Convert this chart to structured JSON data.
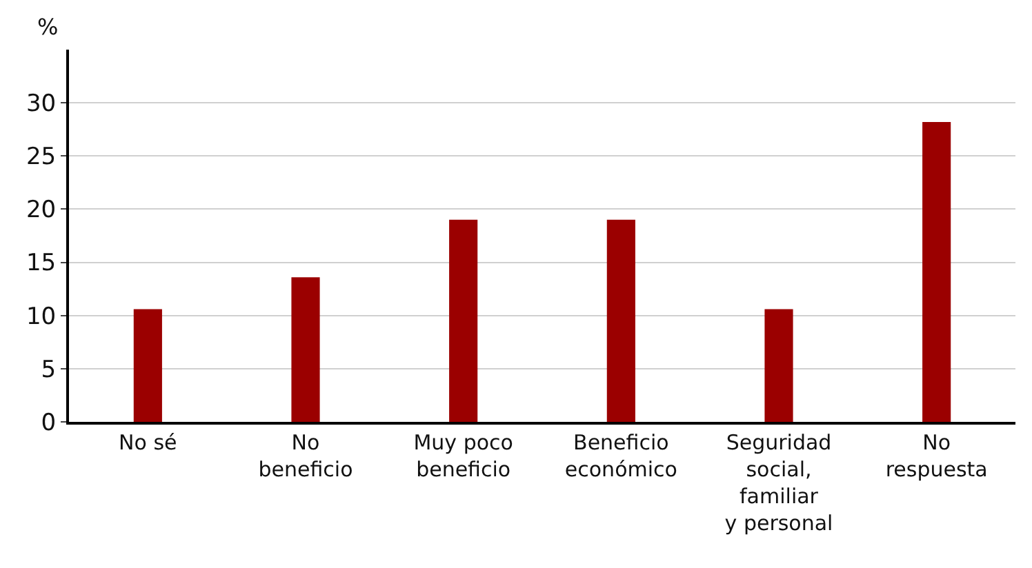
{
  "chart_data": {
    "type": "bar",
    "ylabel": "%",
    "categories": [
      "No sé",
      "No\nbeneficio",
      "Muy poco\nbeneficio",
      "Beneficio\neconómico",
      "Seguridad\nsocial,\nfamiliar\ny personal",
      "No\nrespuesta"
    ],
    "values": [
      10.6,
      13.6,
      19.0,
      19.0,
      10.6,
      28.2
    ],
    "color": "#9b0000",
    "ylim": [
      0,
      35
    ],
    "yticks": [
      0,
      5,
      10,
      15,
      20,
      25,
      30
    ],
    "grid": "y"
  }
}
